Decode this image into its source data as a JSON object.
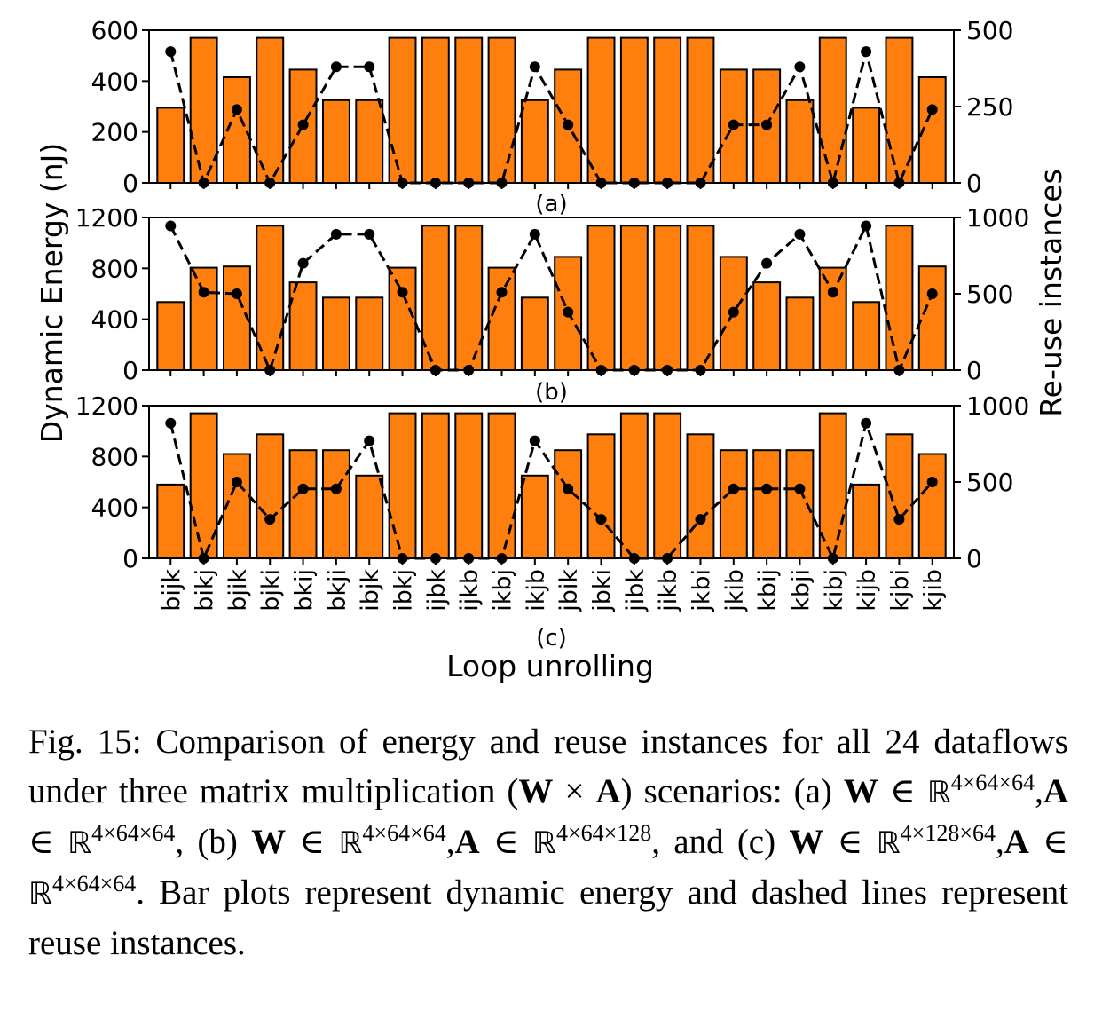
{
  "chart_data": {
    "type": "bar+line",
    "xlabel": "Loop unrolling",
    "ylabel_left": "Dynamic Energy (nJ)",
    "ylabel_right": "Re-use instances",
    "categories": [
      "bijk",
      "bikj",
      "bjik",
      "bjki",
      "bkij",
      "bkji",
      "ibjk",
      "ibkj",
      "ijbk",
      "ijkb",
      "ikbj",
      "ikjb",
      "jbik",
      "jbki",
      "jibk",
      "jikb",
      "jkbi",
      "jkib",
      "kbij",
      "kbji",
      "kibj",
      "kijb",
      "kjbi",
      "kjib"
    ],
    "bar_color": "#ff7f0e",
    "line_color": "#000000",
    "panels": [
      {
        "label": "(a)",
        "energy_ylim": [
          0,
          600
        ],
        "energy_ticks": [
          0,
          200,
          400,
          600
        ],
        "reuse_ylim": [
          0,
          500
        ],
        "reuse_ticks": [
          0,
          250,
          500
        ],
        "series": [
          {
            "name": "Dynamic energy",
            "type": "bar",
            "values": [
              295,
              570,
              415,
              570,
              445,
              325,
              325,
              570,
              570,
              570,
              570,
              325,
              445,
              570,
              570,
              570,
              570,
              445,
              445,
              325,
              570,
              295,
              570,
              415
            ]
          },
          {
            "name": "Reuse instances",
            "type": "line",
            "values": [
              430,
              0,
              240,
              0,
              190,
              380,
              380,
              0,
              0,
              0,
              0,
              380,
              190,
              0,
              0,
              0,
              0,
              190,
              190,
              380,
              0,
              430,
              0,
              240
            ]
          }
        ]
      },
      {
        "label": "(b)",
        "energy_ylim": [
          0,
          1200
        ],
        "energy_ticks": [
          0,
          400,
          800,
          1200
        ],
        "reuse_ylim": [
          0,
          1000
        ],
        "reuse_ticks": [
          0,
          500,
          1000
        ],
        "series": [
          {
            "name": "Dynamic energy",
            "type": "bar",
            "values": [
              535,
              805,
              815,
              1135,
              690,
              570,
              570,
              805,
              1135,
              1135,
              805,
              570,
              890,
              1135,
              1135,
              1135,
              1135,
              890,
              690,
              570,
              805,
              535,
              1135,
              815
            ]
          },
          {
            "name": "Reuse instances",
            "type": "line",
            "values": [
              945,
              510,
              500,
              0,
              700,
              890,
              890,
              510,
              0,
              0,
              510,
              890,
              380,
              0,
              0,
              0,
              0,
              380,
              700,
              890,
              510,
              945,
              0,
              500
            ]
          }
        ]
      },
      {
        "label": "(c)",
        "energy_ylim": [
          0,
          1200
        ],
        "energy_ticks": [
          0,
          400,
          800,
          1200
        ],
        "reuse_ylim": [
          0,
          1000
        ],
        "reuse_ticks": [
          0,
          500,
          1000
        ],
        "series": [
          {
            "name": "Dynamic energy",
            "type": "bar",
            "values": [
              580,
              1140,
              820,
              975,
              850,
              850,
              650,
              1140,
              1140,
              1140,
              1140,
              650,
              850,
              975,
              1140,
              1140,
              975,
              850,
              850,
              850,
              1140,
              580,
              975,
              820
            ]
          },
          {
            "name": "Reuse instances",
            "type": "line",
            "values": [
              885,
              0,
              500,
              255,
              455,
              455,
              770,
              0,
              0,
              0,
              0,
              770,
              455,
              255,
              0,
              0,
              255,
              455,
              455,
              455,
              0,
              885,
              255,
              500
            ]
          }
        ]
      }
    ]
  },
  "caption": {
    "p1": "Fig. 15: Comparison of energy and reuse instances for all 24 dataflows under three matrix multiplication (",
    "W": "W",
    "times": " × ",
    "A": "A",
    "p2": ") scenarios: (a) ",
    "in": " ∈ ",
    "R": "ℝ",
    "dim_4_64_64": "4×64×64",
    "dim_4_64_128": "4×64×128",
    "dim_4_128_64": "4×128×64",
    "comma": ",",
    "sep_b": ", (b) ",
    "sep_c": ", and (c) ",
    "p3": ". Bar plots represent dynamic energy and dashed lines represent reuse instances."
  }
}
